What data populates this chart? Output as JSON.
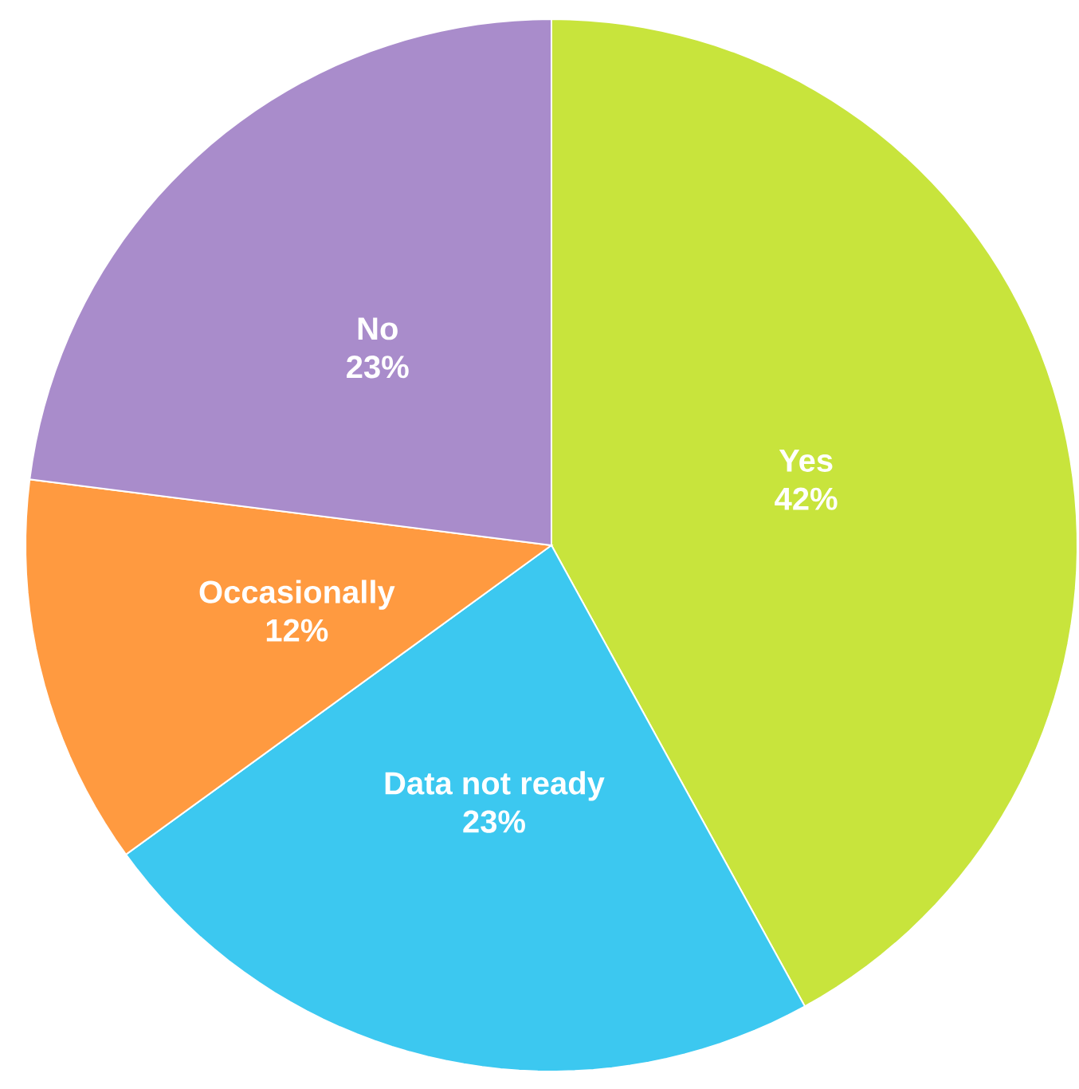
{
  "chart_data": {
    "type": "pie",
    "categories": [
      "Yes",
      "Data not ready",
      "Occasionally",
      "No"
    ],
    "values": [
      42,
      23,
      12,
      23
    ],
    "value_labels": [
      "42%",
      "23%",
      "12%",
      "23%"
    ],
    "colors": [
      "#c8e43c",
      "#3cc8f0",
      "#ff9a40",
      "#a98ccb"
    ]
  }
}
